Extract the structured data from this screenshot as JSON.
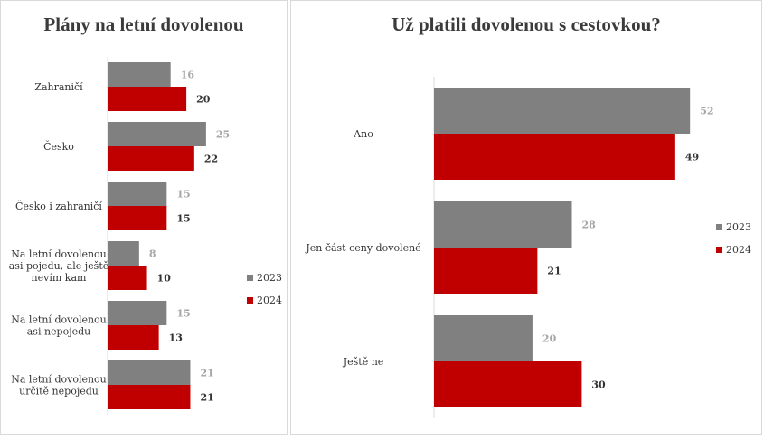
{
  "chart_data": [
    {
      "type": "bar",
      "orientation": "horizontal",
      "title": "Plány na letní dovolenou",
      "categories": [
        "Zahraničí",
        "Česko",
        "Česko i zahraničí",
        "Na letní dovolenou asi pojedu, ale ještě nevím kam",
        "Na letní dovolenou asi nepojedu",
        "Na letní dovolenou určitě nepojedu"
      ],
      "category_lines": [
        [
          "Zahraničí"
        ],
        [
          "Česko"
        ],
        [
          "Česko i zahraničí"
        ],
        [
          "Na letní dovolenou",
          "asi pojedu, ale ještě",
          "nevím kam"
        ],
        [
          "Na letní dovolenou",
          "asi nepojedu"
        ],
        [
          "Na letní dovolenou",
          "určitě nepojedu"
        ]
      ],
      "series": [
        {
          "name": "2023",
          "color": "#808080",
          "label_color": "#a6a6a6",
          "values": [
            16,
            25,
            15,
            8,
            15,
            21
          ]
        },
        {
          "name": "2024",
          "color": "#c00000",
          "label_color": "#333333",
          "values": [
            20,
            22,
            15,
            10,
            13,
            21
          ]
        }
      ],
      "xlim": [
        0,
        45
      ],
      "grid": false,
      "legend": "right"
    },
    {
      "type": "bar",
      "orientation": "horizontal",
      "title": "Už platili dovolenou s cestovkou?",
      "categories": [
        "Ano",
        "Jen část ceny dovolené",
        "Ještě ne"
      ],
      "category_lines": [
        [
          "Ano"
        ],
        [
          "Jen část ceny dovolené"
        ],
        [
          "Ještě ne"
        ]
      ],
      "series": [
        {
          "name": "2023",
          "color": "#808080",
          "label_color": "#a6a6a6",
          "values": [
            52,
            28,
            20
          ]
        },
        {
          "name": "2024",
          "color": "#c00000",
          "label_color": "#333333",
          "values": [
            49,
            21,
            30
          ]
        }
      ],
      "xlim": [
        0,
        65
      ],
      "grid": false,
      "legend": "right"
    }
  ]
}
